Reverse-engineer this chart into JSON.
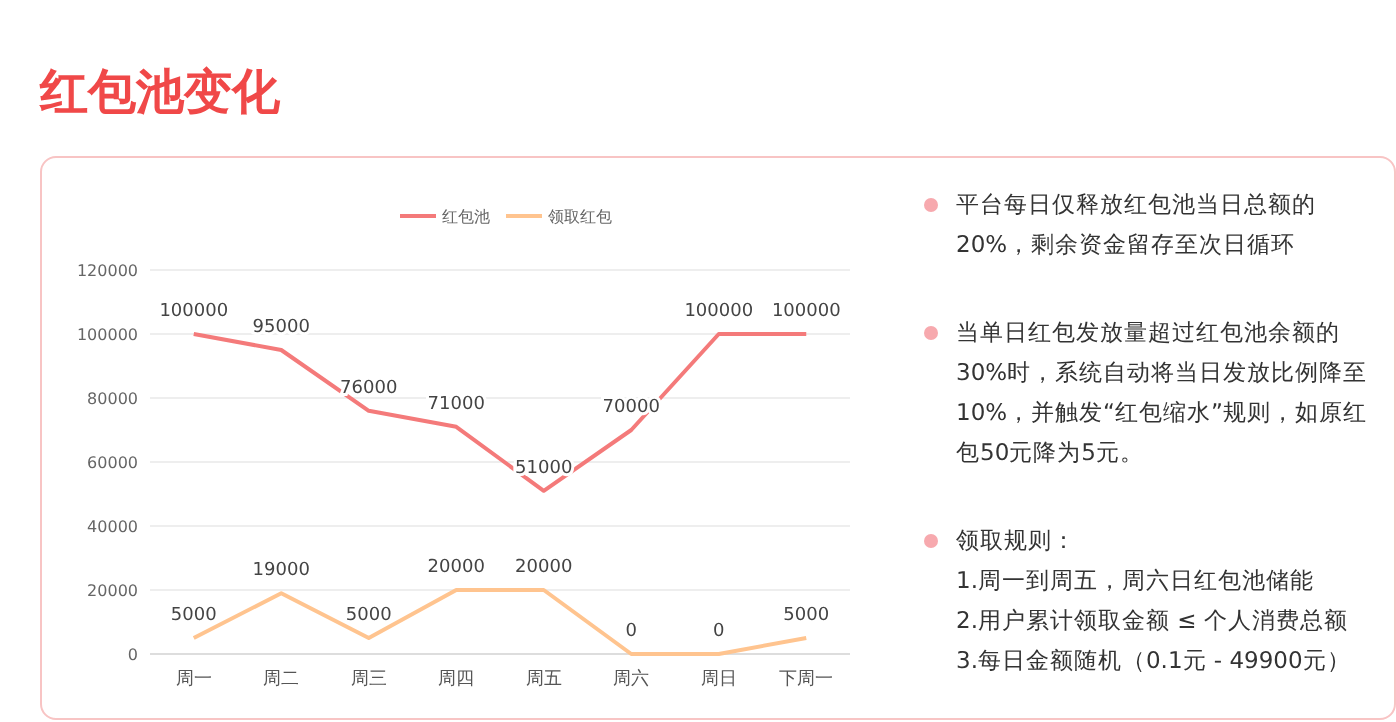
{
  "chart_data": [
    {
      "type": "line",
      "title": "红包池变化",
      "categories": [
        "周一",
        "周二",
        "周三",
        "周四",
        "周五",
        "周六",
        "周日",
        "下周一"
      ],
      "series": [
        {
          "name": "红包池",
          "color": "#f47a7a",
          "values": [
            100000,
            95000,
            76000,
            71000,
            51000,
            70000,
            100000,
            100000
          ]
        },
        {
          "name": "领取红包",
          "color": "#ffc48f",
          "values": [
            5000,
            19000,
            5000,
            20000,
            20000,
            0,
            0,
            5000
          ]
        }
      ],
      "ylim": [
        0,
        120000
      ],
      "yticks": [
        0,
        20000,
        40000,
        60000,
        80000,
        100000,
        120000
      ],
      "grid": "y",
      "legend": "top",
      "data_labels": true,
      "marker": "none",
      "line_style": "solid"
    },
    {
      "type": "other",
      "annotations": [
        "平台每日仅释放红包池当日总额的20%，剩余资金留存至次日循环",
        "当单日红包发放量超过红包池余额的30%时，系统自动将当日发放比例降至10%，并触发“红包缩水”规则，如原红包50元降为5元。",
        "领取规则：\n1.周一到周五，周六日红包池储能\n2.用户累计领取金额 ≤ 个人消费总额\n3.每日金额随机（0.1元 - 49900元）"
      ]
    }
  ]
}
